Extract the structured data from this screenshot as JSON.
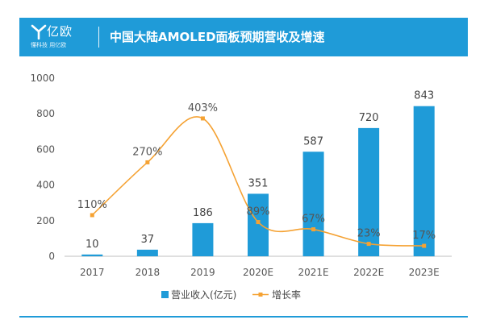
{
  "header": {
    "logo_text": "亿欧",
    "logo_slogan": "懂科技 用亿欧",
    "title": "中国大陆AMOLED面板预期营收及增速"
  },
  "colors": {
    "banner": "#1f9bd8",
    "bar": "#1f9bd8",
    "line": "#f5a233"
  },
  "chart_data": {
    "type": "bar",
    "categories": [
      "2017",
      "2018",
      "2019",
      "2020E",
      "2021E",
      "2022E",
      "2023E"
    ],
    "series": [
      {
        "name": "营业收入(亿元)",
        "type": "bar",
        "values": [
          10,
          37,
          186,
          351,
          587,
          720,
          843
        ],
        "labels": [
          "10",
          "37",
          "186",
          "351",
          "587",
          "720",
          "843"
        ]
      },
      {
        "name": "增长率",
        "type": "line",
        "values": [
          110,
          270,
          403,
          89,
          67,
          23,
          17
        ],
        "labels": [
          "110%",
          "270%",
          "403%",
          "89%",
          "67%",
          "23%",
          "17%"
        ]
      }
    ],
    "ylim": [
      0,
      1000
    ],
    "yticks": [
      "0",
      "200",
      "400",
      "600",
      "800",
      "1000"
    ],
    "legend_position": "bottom",
    "grid": false
  }
}
